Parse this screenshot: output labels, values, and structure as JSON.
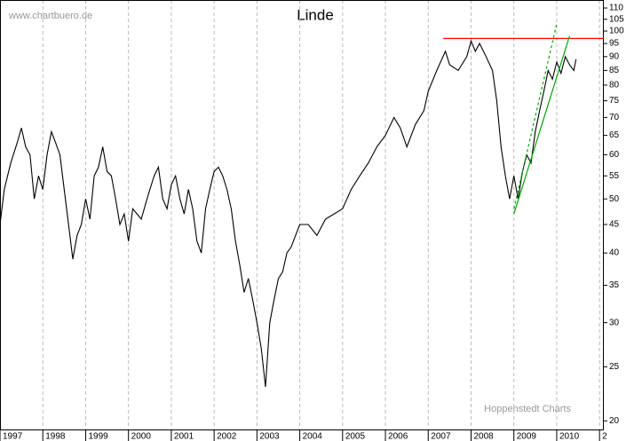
{
  "chart_data": {
    "type": "line",
    "title": "Linde",
    "watermark": "www.chartbuero.de",
    "source": "Hoppenstedt Charts",
    "log_scale": true,
    "grid": true,
    "xlim": [
      1997,
      2011.1
    ],
    "xticks": [
      1997,
      1998,
      1999,
      2000,
      2001,
      2002,
      2003,
      2004,
      2005,
      2006,
      2007,
      2008,
      2009,
      2010,
      {
        "value": 2011,
        "label": "2"
      }
    ],
    "ylim": [
      19.3,
      113.7
    ],
    "yticks": [
      20,
      25,
      30,
      35,
      40,
      45,
      50,
      55,
      60,
      65,
      70,
      75,
      80,
      85,
      90,
      95,
      100,
      105,
      110
    ],
    "series": [
      {
        "name": "Linde",
        "color": "#000000",
        "x": [
          1997.0,
          1997.1,
          1997.25,
          1997.4,
          1997.5,
          1997.6,
          1997.7,
          1997.8,
          1997.9,
          1998.0,
          1998.1,
          1998.2,
          1998.3,
          1998.4,
          1998.5,
          1998.6,
          1998.7,
          1998.8,
          1998.9,
          1999.0,
          1999.1,
          1999.2,
          1999.3,
          1999.4,
          1999.5,
          1999.6,
          1999.7,
          1999.8,
          1999.9,
          2000.0,
          2000.1,
          2000.2,
          2000.3,
          2000.4,
          2000.5,
          2000.6,
          2000.7,
          2000.8,
          2000.9,
          2001.0,
          2001.1,
          2001.2,
          2001.3,
          2001.4,
          2001.5,
          2001.6,
          2001.7,
          2001.8,
          2001.9,
          2002.0,
          2002.1,
          2002.2,
          2002.3,
          2002.4,
          2002.5,
          2002.6,
          2002.7,
          2002.8,
          2002.9,
          2003.0,
          2003.1,
          2003.2,
          2003.3,
          2003.4,
          2003.5,
          2003.6,
          2003.7,
          2003.8,
          2003.9,
          2004.0,
          2004.2,
          2004.4,
          2004.6,
          2004.8,
          2005.0,
          2005.2,
          2005.4,
          2005.6,
          2005.8,
          2006.0,
          2006.2,
          2006.35,
          2006.5,
          2006.7,
          2006.9,
          2007.0,
          2007.2,
          2007.4,
          2007.5,
          2007.7,
          2007.9,
          2008.0,
          2008.1,
          2008.2,
          2008.35,
          2008.5,
          2008.6,
          2008.7,
          2008.8,
          2008.9,
          2009.0,
          2009.1,
          2009.2,
          2009.3,
          2009.4,
          2009.5,
          2009.6,
          2009.7,
          2009.8,
          2009.9,
          2010.0,
          2010.1,
          2010.2,
          2010.3,
          2010.4,
          2010.45
        ],
        "values": [
          45,
          52,
          58,
          63,
          67,
          62,
          60,
          50,
          55,
          52,
          60,
          66,
          63,
          60,
          52,
          45,
          39,
          43,
          45,
          50,
          46,
          55,
          57,
          62,
          56,
          55,
          50,
          45,
          47,
          42,
          48,
          47,
          46,
          49,
          52,
          55,
          57,
          50,
          48,
          53,
          55,
          50,
          47,
          52,
          48,
          42,
          40,
          48,
          52,
          56,
          57,
          55,
          52,
          48,
          42,
          38,
          34,
          36,
          33,
          30,
          27,
          23,
          30,
          33,
          36,
          37,
          40,
          41,
          43,
          45,
          45,
          43,
          46,
          47,
          48,
          52,
          55,
          58,
          62,
          65,
          70,
          67,
          62,
          68,
          72,
          78,
          85,
          92,
          87,
          85,
          90,
          96,
          92,
          95,
          90,
          85,
          75,
          62,
          55,
          50,
          55,
          50,
          56,
          60,
          58,
          66,
          72,
          78,
          85,
          82,
          88,
          84,
          90,
          87,
          85,
          89
        ]
      }
    ],
    "lines": [
      {
        "color": "#ff0000",
        "dashed": false,
        "x": [
          2007.35,
          2011.1
        ],
        "y": [
          97,
          97
        ]
      },
      {
        "color": "#00aa00",
        "dashed": false,
        "x": [
          2009.0,
          2010.3
        ],
        "y": [
          47,
          98
        ]
      },
      {
        "color": "#00aa00",
        "dashed": true,
        "x": [
          2009.0,
          2010.0
        ],
        "y": [
          48,
          103
        ]
      }
    ]
  }
}
